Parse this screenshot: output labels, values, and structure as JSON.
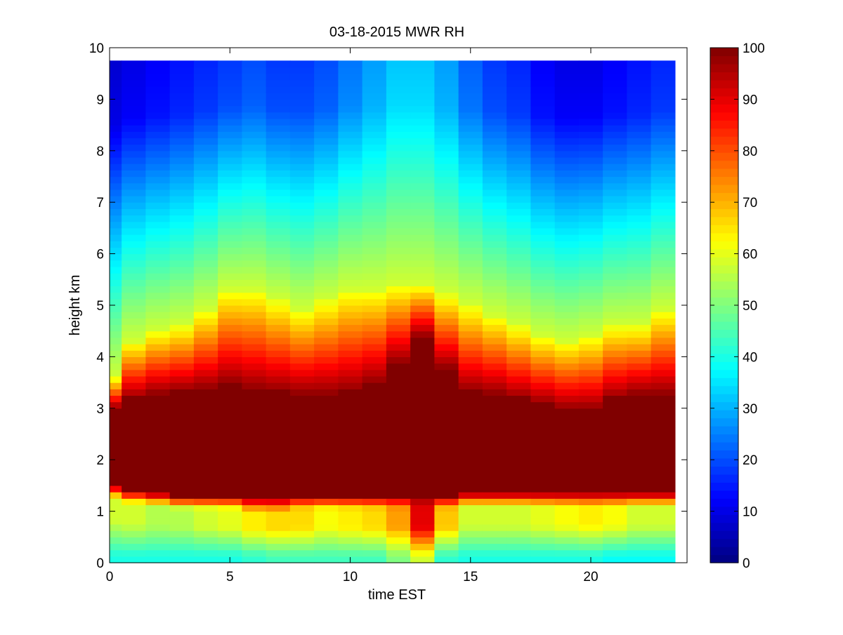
{
  "chart_data": {
    "type": "heatmap",
    "title": "03-18-2015 MWR RH",
    "xlabel": "time EST",
    "ylabel": "height km",
    "xlim": [
      0,
      24
    ],
    "ylim": [
      0,
      10
    ],
    "x_ticks": [
      "0",
      "5",
      "10",
      "15",
      "20"
    ],
    "x_tick_values": [
      0,
      5,
      10,
      15,
      20
    ],
    "y_ticks": [
      "0",
      "1",
      "2",
      "3",
      "4",
      "5",
      "6",
      "7",
      "8",
      "9",
      "10"
    ],
    "y_tick_values": [
      0,
      1,
      2,
      3,
      4,
      5,
      6,
      7,
      8,
      9,
      10
    ],
    "colorbar": {
      "colormap": "jet",
      "range": [
        0,
        100
      ],
      "ticks": [
        "0",
        "10",
        "20",
        "30",
        "40",
        "50",
        "60",
        "70",
        "80",
        "90",
        "100"
      ],
      "tick_values": [
        0,
        10,
        20,
        30,
        40,
        50,
        60,
        70,
        80,
        90,
        100
      ]
    },
    "z_label": "RH",
    "time_hours": [
      0,
      1,
      2,
      3,
      4,
      5,
      6,
      7,
      8,
      9,
      10,
      11,
      12,
      13,
      14,
      15,
      16,
      17,
      18,
      19,
      20,
      21,
      22,
      23
    ],
    "height_max_km": 9.75,
    "levels": [
      {
        "name": "surface_rh",
        "values": [
          40,
          40,
          40,
          40,
          40,
          40,
          42,
          44,
          44,
          44,
          44,
          44,
          50,
          58,
          42,
          40,
          40,
          40,
          40,
          40,
          40,
          38,
          38,
          38
        ]
      },
      {
        "name": "low_rh",
        "values": [
          58,
          58,
          55,
          55,
          58,
          60,
          64,
          66,
          66,
          62,
          64,
          66,
          72,
          90,
          68,
          58,
          58,
          58,
          60,
          62,
          64,
          62,
          58,
          58
        ]
      },
      {
        "name": "lower_boundary_km",
        "values": [
          1.5,
          1.4,
          1.35,
          1.3,
          1.3,
          1.3,
          1.25,
          1.25,
          1.3,
          1.3,
          1.3,
          1.3,
          1.3,
          1.3,
          1.3,
          1.35,
          1.35,
          1.35,
          1.35,
          1.35,
          1.35,
          1.35,
          1.35,
          1.35
        ]
      },
      {
        "name": "upper_boundary_km",
        "values": [
          3.0,
          3.2,
          3.3,
          3.35,
          3.4,
          3.5,
          3.4,
          3.35,
          3.3,
          3.3,
          3.35,
          3.5,
          3.9,
          4.4,
          3.8,
          3.35,
          3.3,
          3.2,
          3.1,
          3.0,
          3.0,
          3.2,
          3.3,
          3.3
        ]
      },
      {
        "name": "top_of_cloud_layer_km",
        "values": [
          3.6,
          4.3,
          4.5,
          4.6,
          4.9,
          5.3,
          5.3,
          5.1,
          4.9,
          5.1,
          5.3,
          5.3,
          5.4,
          5.4,
          5.2,
          5.0,
          4.8,
          4.6,
          4.4,
          4.3,
          4.4,
          4.6,
          4.6,
          4.9
        ]
      },
      {
        "name": "upper_rh_anchor",
        "values": [
          18,
          20,
          22,
          24,
          26,
          28,
          30,
          28,
          28,
          30,
          34,
          38,
          42,
          42,
          38,
          32,
          28,
          26,
          22,
          20,
          20,
          22,
          24,
          26
        ]
      }
    ]
  }
}
